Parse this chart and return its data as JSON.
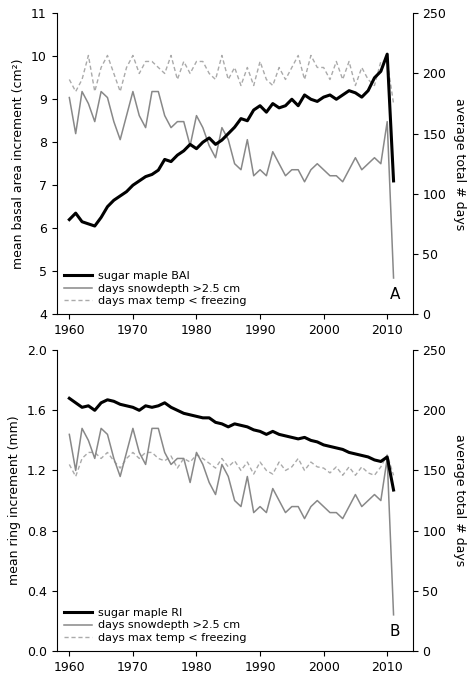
{
  "years": [
    1960,
    1961,
    1962,
    1963,
    1964,
    1965,
    1966,
    1967,
    1968,
    1969,
    1970,
    1971,
    1972,
    1973,
    1974,
    1975,
    1976,
    1977,
    1978,
    1979,
    1980,
    1981,
    1982,
    1983,
    1984,
    1985,
    1986,
    1987,
    1988,
    1989,
    1990,
    1991,
    1992,
    1993,
    1994,
    1995,
    1996,
    1997,
    1998,
    1999,
    2000,
    2001,
    2002,
    2003,
    2004,
    2005,
    2006,
    2007,
    2008,
    2009,
    2010,
    2011
  ],
  "bai": [
    6.2,
    6.35,
    6.15,
    6.1,
    6.05,
    6.25,
    6.5,
    6.65,
    6.75,
    6.85,
    7.0,
    7.1,
    7.2,
    7.25,
    7.35,
    7.6,
    7.55,
    7.7,
    7.8,
    7.95,
    7.85,
    8.0,
    8.1,
    7.95,
    8.05,
    8.2,
    8.35,
    8.55,
    8.5,
    8.75,
    8.85,
    8.7,
    8.9,
    8.8,
    8.85,
    9.0,
    8.85,
    9.1,
    9.0,
    8.95,
    9.05,
    9.1,
    9.0,
    9.1,
    9.2,
    9.15,
    9.05,
    9.2,
    9.5,
    9.65,
    10.05,
    7.1
  ],
  "snow_bai": [
    180,
    150,
    185,
    175,
    160,
    185,
    180,
    160,
    145,
    165,
    185,
    165,
    155,
    185,
    185,
    165,
    155,
    160,
    160,
    140,
    165,
    155,
    140,
    130,
    155,
    145,
    125,
    120,
    145,
    115,
    120,
    115,
    135,
    125,
    115,
    120,
    120,
    110,
    120,
    125,
    120,
    115,
    115,
    110,
    120,
    130,
    120,
    125,
    130,
    125,
    160,
    30
  ],
  "freeze_bai": [
    195,
    185,
    195,
    215,
    185,
    205,
    215,
    200,
    185,
    205,
    215,
    200,
    210,
    210,
    205,
    200,
    215,
    195,
    210,
    200,
    210,
    210,
    200,
    195,
    215,
    195,
    205,
    190,
    205,
    190,
    210,
    195,
    190,
    205,
    195,
    205,
    215,
    195,
    215,
    205,
    205,
    195,
    210,
    195,
    210,
    190,
    205,
    195,
    190,
    210,
    210,
    175
  ],
  "ri": [
    1.68,
    1.65,
    1.62,
    1.63,
    1.6,
    1.65,
    1.67,
    1.66,
    1.64,
    1.63,
    1.62,
    1.6,
    1.63,
    1.62,
    1.63,
    1.65,
    1.62,
    1.6,
    1.58,
    1.57,
    1.56,
    1.55,
    1.55,
    1.52,
    1.51,
    1.49,
    1.51,
    1.5,
    1.49,
    1.47,
    1.46,
    1.44,
    1.46,
    1.44,
    1.43,
    1.42,
    1.41,
    1.42,
    1.4,
    1.39,
    1.37,
    1.36,
    1.35,
    1.34,
    1.32,
    1.31,
    1.3,
    1.29,
    1.27,
    1.26,
    1.29,
    1.07
  ],
  "snow_ri": [
    180,
    150,
    185,
    175,
    160,
    185,
    180,
    160,
    145,
    165,
    185,
    165,
    155,
    185,
    185,
    165,
    155,
    160,
    160,
    140,
    165,
    155,
    140,
    130,
    155,
    145,
    125,
    120,
    145,
    115,
    120,
    115,
    135,
    125,
    115,
    120,
    120,
    110,
    120,
    125,
    120,
    115,
    115,
    110,
    120,
    130,
    120,
    125,
    130,
    125,
    160,
    30
  ],
  "freeze_ri": [
    155,
    145,
    160,
    165,
    165,
    160,
    165,
    158,
    152,
    160,
    165,
    160,
    165,
    165,
    160,
    158,
    162,
    152,
    160,
    157,
    163,
    160,
    156,
    152,
    160,
    153,
    158,
    150,
    157,
    147,
    157,
    150,
    147,
    157,
    150,
    153,
    160,
    150,
    157,
    153,
    152,
    148,
    153,
    146,
    153,
    146,
    153,
    148,
    146,
    153,
    163,
    146
  ],
  "panel_A": {
    "ylabel_left": "mean basal area increment (cm²)",
    "ylabel_right": "average total # days",
    "ylim_left": [
      4,
      11
    ],
    "ylim_right": [
      0,
      250
    ],
    "yticks_left": [
      4,
      5,
      6,
      7,
      8,
      9,
      10,
      11
    ],
    "yticks_right": [
      0,
      50,
      100,
      150,
      200,
      250
    ],
    "label_bai": "sugar maple BAI",
    "label_snow": "days snowdepth >2.5 cm",
    "label_freeze": "days max temp < freezing",
    "panel_label": "A"
  },
  "panel_B": {
    "ylabel_left": "mean ring increment (mm)",
    "ylabel_right": "average total # days",
    "ylim_left": [
      0,
      2
    ],
    "ylim_right": [
      0,
      250
    ],
    "yticks_left": [
      0,
      0.4,
      0.8,
      1.2,
      1.6,
      2.0
    ],
    "yticks_right": [
      0,
      50,
      100,
      150,
      200,
      250
    ],
    "label_bai": "sugar maple RI",
    "label_snow": "days snowdepth >2.5 cm",
    "label_freeze": "days max temp < freezing",
    "panel_label": "B"
  },
  "color_bai": "#000000",
  "color_snow": "#888888",
  "color_freeze": "#aaaaaa",
  "xlim": [
    1958,
    2014
  ],
  "xticks": [
    1960,
    1970,
    1980,
    1990,
    2000,
    2010
  ],
  "bg_color": "#ffffff"
}
